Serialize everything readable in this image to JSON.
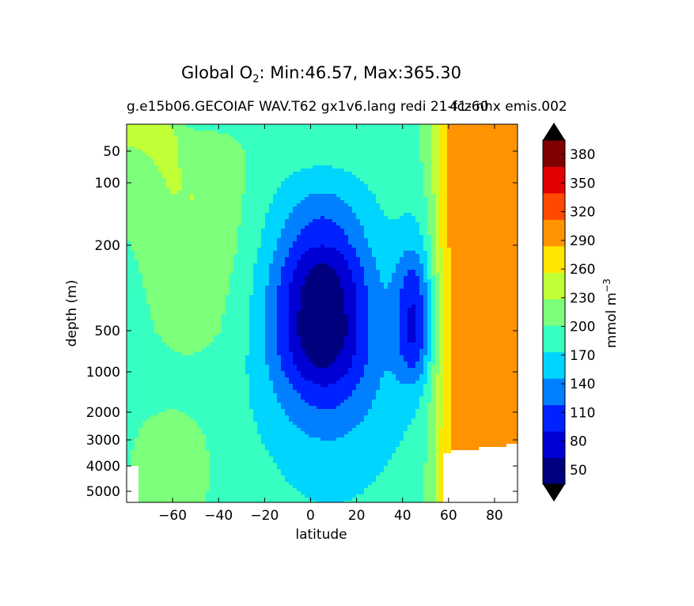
{
  "chart_data": {
    "type": "heatmap",
    "title_prefix": "Global O",
    "title_subscript": "2",
    "title_suffix": ": Min:46.57, Max:365.30",
    "subtitle": "g.e15b06.GECOIAF WAV.T62 gx1v6.lang redi 21-fcz nhx emis.002",
    "subtitle_overlap": "41-60",
    "xlabel": "latitude",
    "ylabel": "depth (m)",
    "xlim": [
      -80,
      90
    ],
    "ylim": [
      5500,
      10
    ],
    "x_ticks": [
      -60,
      -40,
      -20,
      0,
      20,
      40,
      60,
      80
    ],
    "y_ticks": [
      50,
      100,
      200,
      500,
      1000,
      2000,
      3000,
      4000,
      5000
    ],
    "colorbar_label": "mmol m",
    "colorbar_label_exp": "−3",
    "colorbar_ticks": [
      50,
      80,
      110,
      140,
      170,
      200,
      230,
      260,
      290,
      320,
      350,
      380
    ],
    "levels": [
      35,
      65,
      95,
      125,
      155,
      185,
      215,
      245,
      275,
      305,
      335,
      365,
      395
    ],
    "colors": [
      "#00007f",
      "#0000d4",
      "#0022ff",
      "#0080ff",
      "#00d5ff",
      "#36ffc1",
      "#7cff7a",
      "#c1ff36",
      "#ffe500",
      "#ff9400",
      "#ff4800",
      "#e30000",
      "#7f0000"
    ],
    "extend_colors": [
      "#000000",
      "#000000"
    ]
  }
}
